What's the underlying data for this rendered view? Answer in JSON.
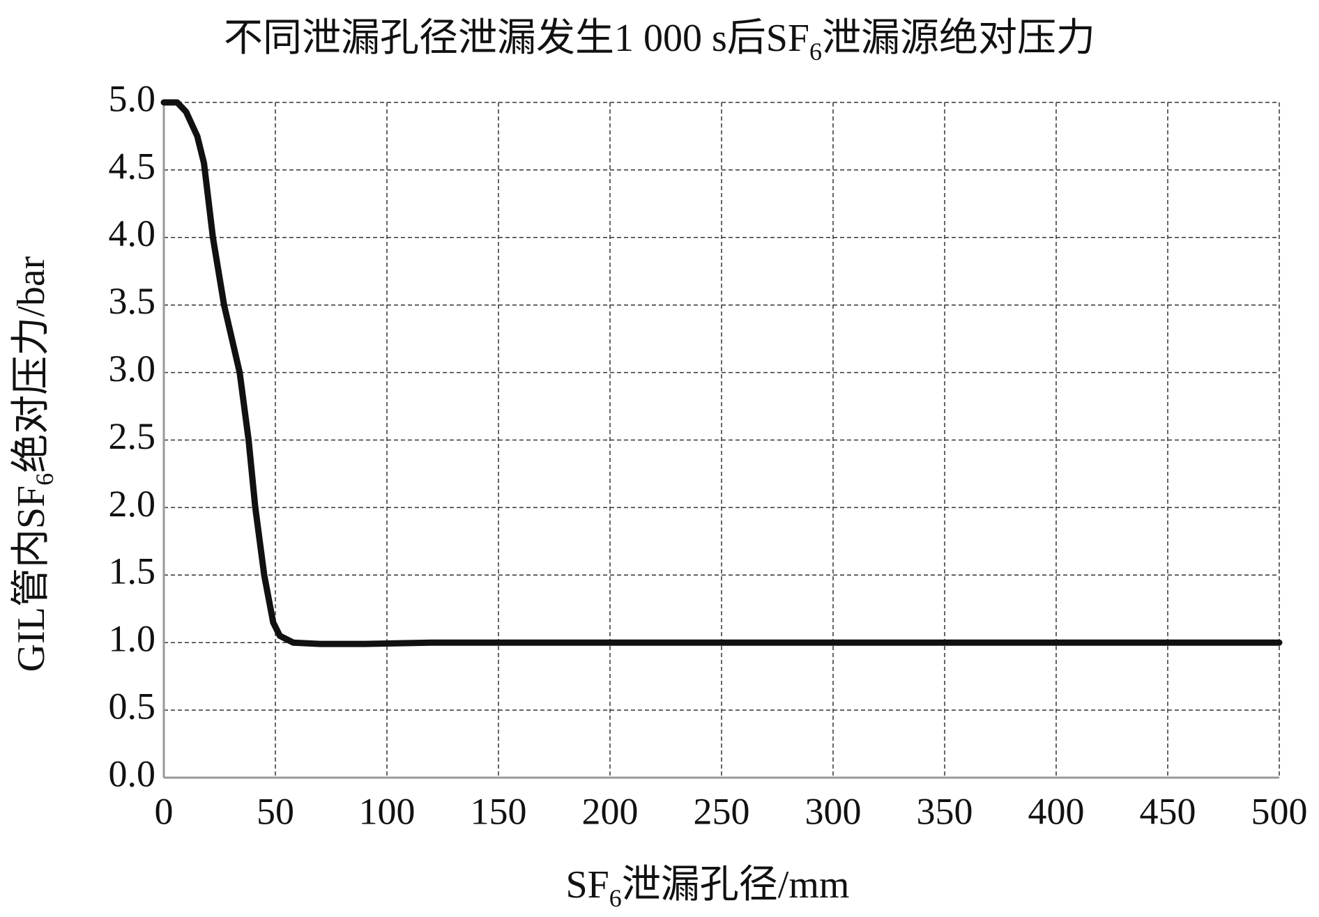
{
  "chart_data": {
    "type": "line",
    "title": [
      "不同泄漏孔径泄漏发生1 000 s后SF",
      "6",
      "泄漏源绝对压力"
    ],
    "xlabel": [
      "SF",
      "6",
      "泄漏孔径/mm"
    ],
    "ylabel": [
      "GIL管内SF",
      "6",
      "绝对压力/bar"
    ],
    "x": [
      0,
      6,
      10,
      15,
      18,
      22,
      27,
      34,
      38,
      41,
      45,
      49,
      52,
      58,
      70,
      90,
      120,
      500
    ],
    "values": [
      5.0,
      5.0,
      4.93,
      4.75,
      4.55,
      4.0,
      3.5,
      3.0,
      2.5,
      2.0,
      1.5,
      1.15,
      1.05,
      1.0,
      0.99,
      0.99,
      1.0,
      1.0
    ],
    "color": "#111111",
    "xlim": [
      0,
      500
    ],
    "xticks": [
      0,
      50,
      100,
      150,
      200,
      250,
      300,
      350,
      400,
      450,
      500
    ],
    "ylim": [
      0,
      5
    ],
    "yticks": [
      {
        "value": 0,
        "label": "0.0"
      },
      0.5,
      {
        "value": 1,
        "label": "1.0"
      },
      1.5,
      {
        "value": 2,
        "label": "2.0"
      },
      2.5,
      {
        "value": 3,
        "label": "3.0"
      },
      3.5,
      {
        "value": 4,
        "label": "4.0"
      },
      4.5,
      {
        "value": 5,
        "label": "5.0"
      }
    ],
    "grid": true
  }
}
